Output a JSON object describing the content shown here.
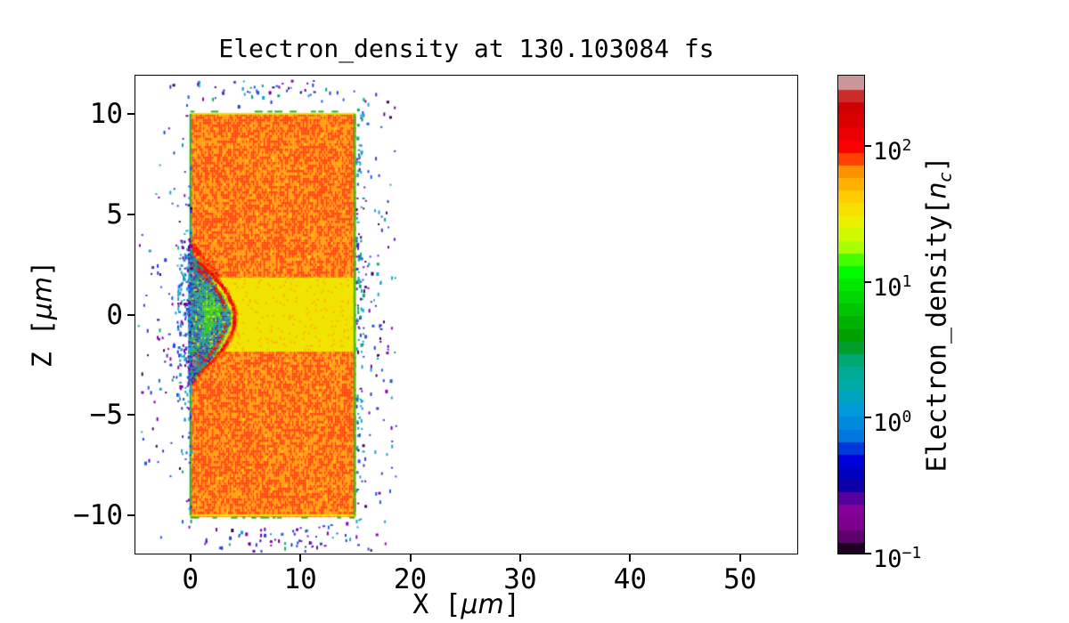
{
  "chart_data": {
    "type": "heatmap",
    "title": "Electron_density at 130.103084 fs",
    "time_fs": 130.103084,
    "xlabel": {
      "pre": "X [",
      "italic": "μm",
      "post": "]"
    },
    "ylabel": {
      "pre": "Z [",
      "italic": "μm",
      "post": "]"
    },
    "xlim": [
      -5,
      55.2
    ],
    "ylim": [
      -11.9,
      11.9
    ],
    "xticks": {
      "values": [
        0,
        10,
        20,
        30,
        40,
        50
      ],
      "labels": [
        "0",
        "10",
        "20",
        "30",
        "40",
        "50"
      ]
    },
    "yticks": {
      "values": [
        10,
        5,
        0,
        -5,
        -10
      ],
      "labels": [
        "10",
        "5",
        "0",
        "−5",
        "−10"
      ]
    },
    "grid": false,
    "background": "#ffffff",
    "spine_color": "#000000",
    "colorbar": {
      "label": {
        "pre": "Electron_density[",
        "italic_n": "n",
        "sub": "c",
        "post": "]"
      },
      "scale": "log",
      "log_range": [
        -1,
        2.52
      ],
      "n_bands": 38,
      "colormap": "nipy_spectral",
      "ticks": [
        {
          "value": 100,
          "base": "10",
          "exp": "2"
        },
        {
          "value": 10,
          "base": "10",
          "exp": "1"
        },
        {
          "value": 1,
          "base": "10",
          "exp": "0"
        },
        {
          "value": 0.1,
          "base": "10",
          "exp": "−1"
        }
      ],
      "colormap_stops": [
        [
          0.0,
          "#000000"
        ],
        [
          0.05,
          "#770088"
        ],
        [
          0.1,
          "#880099"
        ],
        [
          0.15,
          "#0000aa"
        ],
        [
          0.2,
          "#0000dd"
        ],
        [
          0.25,
          "#0077dd"
        ],
        [
          0.3,
          "#0099dd"
        ],
        [
          0.35,
          "#00aaaa"
        ],
        [
          0.4,
          "#00aa88"
        ],
        [
          0.45,
          "#009900"
        ],
        [
          0.5,
          "#00bb00"
        ],
        [
          0.55,
          "#00dd00"
        ],
        [
          0.6,
          "#00ff00"
        ],
        [
          0.65,
          "#bbff00"
        ],
        [
          0.7,
          "#eeee00"
        ],
        [
          0.75,
          "#ffcc00"
        ],
        [
          0.8,
          "#ff9900"
        ],
        [
          0.85,
          "#ff0000"
        ],
        [
          0.9,
          "#dd0000"
        ],
        [
          0.95,
          "#cc0000"
        ],
        [
          1.0,
          "#cccccc"
        ]
      ]
    },
    "structures": {
      "target_slab": {
        "x_um": [
          0,
          15
        ],
        "z_um": [
          -10,
          10
        ],
        "density_nc": "35-60",
        "colors": [
          "#fb3e00",
          "#ff9800"
        ],
        "sparkle": "#ffc400"
      },
      "channel": {
        "x_um": [
          0,
          15
        ],
        "z_um": [
          -1.85,
          1.85
        ],
        "density_nc": "~25",
        "color": "#f0e400",
        "speckle_color": "#ffb400"
      },
      "blowout_cone": {
        "tip_x_um": 3.7,
        "z_um": [
          -3.4,
          3.0
        ],
        "density_nc": "0.5-15",
        "colors": [
          "#0898cc",
          "#00a8a0",
          "#2338d8",
          "#09b44e",
          "#1560e0",
          "#3c14b4"
        ],
        "blob_colors": [
          "#1ecf1e",
          "#09b44e",
          "#36d836"
        ]
      },
      "bow_filaments": {
        "apex_x_um": 3.9,
        "z_um": [
          -2.95,
          2.62
        ],
        "density_nc": "100-200",
        "colors": [
          "#ee1400",
          "#ff5400",
          "#c80000"
        ],
        "fringe": "#ff7a00"
      },
      "hot_rims": {
        "density_nc": "100-250",
        "colors": [
          "#ee1400",
          "#ff5400",
          "#c00000"
        ]
      },
      "peak_spot": {
        "x_um": 0.25,
        "z_um": -2.2,
        "density_nc": ">300",
        "colors": [
          "#c4b4b4",
          "#a89494",
          "#8a7878"
        ]
      },
      "edge_lines": {
        "green": "#28b428",
        "bright_green": "#28c828",
        "yellow": "#f0e000"
      },
      "halo_electrons": {
        "density_nc": "0.1-1",
        "left_extent_um": -4.9,
        "right_extent_um": 18.8,
        "colors": [
          "#2c3cd8",
          "#1e5ae8",
          "#6e00a8",
          "#9000b4",
          "#14a4d4",
          "#00a87e",
          "#3c0064"
        ]
      }
    }
  }
}
